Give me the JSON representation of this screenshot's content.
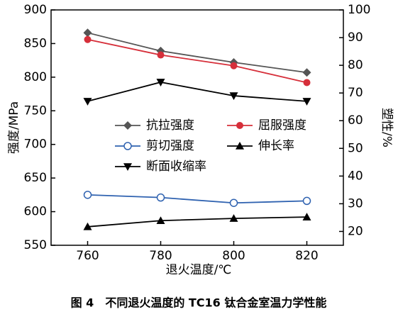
{
  "chart_data": {
    "type": "line",
    "caption": "图 4　不同退火温度的 TC16 钛合金室温力学性能",
    "xlabel": "退火温度/℃",
    "ylabel": "强度/MPa",
    "y2label": "塑性/%",
    "x": [
      760,
      780,
      800,
      820
    ],
    "xlim": [
      750,
      830
    ],
    "xticks": [
      760,
      780,
      800,
      820
    ],
    "ylim": [
      550,
      900
    ],
    "yticks": [
      550,
      600,
      650,
      700,
      750,
      800,
      850,
      900
    ],
    "y2lim": [
      15,
      100
    ],
    "y2ticks": [
      20,
      30,
      40,
      50,
      60,
      70,
      80,
      90,
      100
    ],
    "series": [
      {
        "name": "抗拉强度",
        "color": "#555555",
        "marker": "diamond",
        "values": [
          866,
          839,
          822,
          807
        ]
      },
      {
        "name": "屈服强度",
        "color": "#d62f3a",
        "marker": "circle",
        "values": [
          856,
          833,
          817,
          792
        ]
      },
      {
        "name": "剪切强度",
        "color": "#2f62b0",
        "marker": "open-circle",
        "values": [
          625,
          621,
          613,
          616
        ]
      },
      {
        "name": "伸长率",
        "color": "#000000",
        "marker": "triangle-up",
        "axis": "y2",
        "values": [
          21.7,
          23.9,
          24.7,
          25.2
        ]
      },
      {
        "name": "断面收缩率",
        "color": "#000000",
        "marker": "triangle-down",
        "axis": "y2",
        "values": [
          67,
          73.9,
          69,
          67
        ]
      }
    ]
  }
}
